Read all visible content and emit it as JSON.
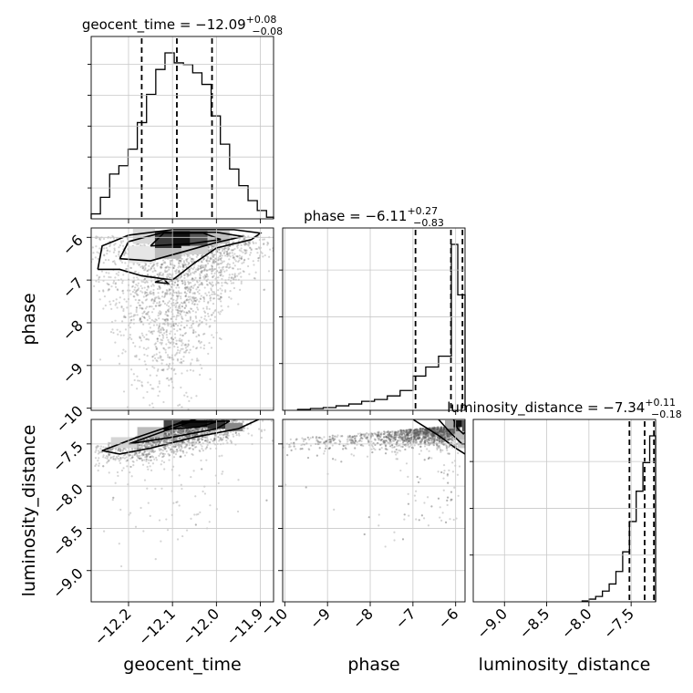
{
  "chart_data": {
    "type": "corner",
    "parameters": [
      "geocent_time",
      "phase",
      "luminosity_distance"
    ],
    "titles": [
      {
        "param": "geocent_time",
        "median": "−12.09",
        "plus": "+0.08",
        "minus": "−0.08"
      },
      {
        "param": "phase",
        "median": "−6.11",
        "plus": "+0.27",
        "minus": "−0.83"
      },
      {
        "param": "luminosity_distance",
        "median": "−7.34",
        "plus": "+0.11",
        "minus": "−0.18"
      }
    ],
    "ranges": {
      "geocent_time": [
        -12.285,
        -11.87
      ],
      "phase": [
        -10.05,
        -5.78
      ],
      "luminosity_distance": [
        -9.37,
        -7.21
      ]
    },
    "ticks": {
      "geocent_time": [
        -12.2,
        -12.1,
        -12.0,
        -11.9
      ],
      "phase": [
        -10,
        -9,
        -8,
        -7,
        -6
      ],
      "luminosity_distance": [
        -9.0,
        -8.5,
        -8.0,
        -7.5
      ]
    },
    "tick_labels": {
      "geocent_time": [
        "−12.2",
        "−12.1",
        "−12.0",
        "−11.9"
      ],
      "phase": [
        "−10",
        "−9",
        "−8",
        "−7",
        "−6"
      ],
      "luminosity_distance": [
        "−9.0",
        "−8.5",
        "−8.0",
        "−7.5"
      ]
    },
    "quantile_lines": {
      "geocent_time": [
        -12.17,
        -12.09,
        -12.01
      ],
      "phase": [
        -6.94,
        -6.11,
        -5.84
      ],
      "luminosity_distance": [
        -7.52,
        -7.34,
        -7.23
      ]
    },
    "histograms": {
      "geocent_time": {
        "edges": [
          -12.285,
          -12.264,
          -12.243,
          -12.222,
          -12.201,
          -12.18,
          -12.159,
          -12.138,
          -12.117,
          -12.096,
          -12.075,
          -12.054,
          -12.033,
          -12.012,
          -11.991,
          -11.97,
          -11.949,
          -11.928,
          -11.907,
          -11.886,
          -11.87
        ],
        "counts": [
          0.03,
          0.13,
          0.27,
          0.32,
          0.42,
          0.58,
          0.75,
          0.9,
          1.0,
          0.94,
          0.93,
          0.88,
          0.81,
          0.62,
          0.45,
          0.3,
          0.2,
          0.11,
          0.05,
          0.01
        ]
      },
      "phase": {
        "edges": [
          -9.7,
          -9.4,
          -9.1,
          -8.8,
          -8.5,
          -8.2,
          -7.9,
          -7.6,
          -7.3,
          -7.0,
          -6.7,
          -6.4,
          -6.1,
          -5.95,
          -5.78
        ],
        "counts": [
          0.005,
          0.01,
          0.015,
          0.025,
          0.035,
          0.05,
          0.06,
          0.08,
          0.11,
          0.19,
          0.24,
          0.3,
          0.92,
          0.64
        ]
      },
      "luminosity_distance": {
        "edges": [
          -8.08,
          -8.0,
          -7.92,
          -7.84,
          -7.76,
          -7.68,
          -7.6,
          -7.52,
          -7.44,
          -7.36,
          -7.28,
          -7.21
        ],
        "counts": [
          0.005,
          0.015,
          0.03,
          0.06,
          0.1,
          0.17,
          0.28,
          0.45,
          0.62,
          0.78,
          0.93
        ]
      }
    },
    "scatter_note": "density of samples estimated from figure"
  }
}
